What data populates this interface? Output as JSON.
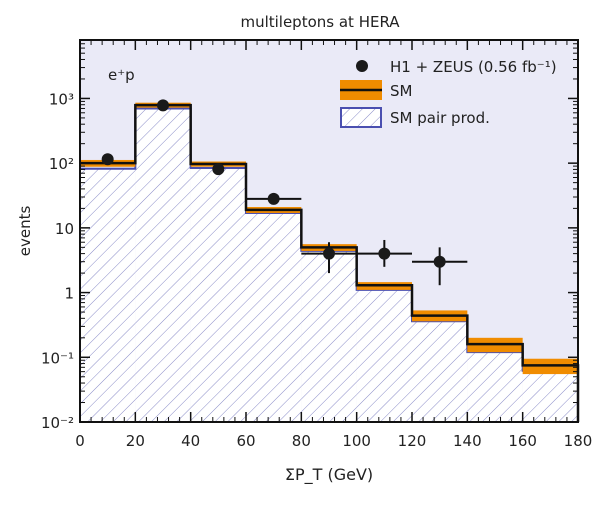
{
  "chart_data": {
    "type": "bar",
    "title": "multileptons at HERA",
    "annotation": "e⁺p",
    "xlabel": "ΣP_T (GeV)",
    "ylabel": "events",
    "xlim": [
      0,
      180
    ],
    "ylim": [
      0.01,
      8000
    ],
    "yscale": "log",
    "xticks": [
      0,
      20,
      40,
      60,
      80,
      100,
      120,
      140,
      160,
      180
    ],
    "yticks": [
      {
        "v": 0.01,
        "label": "10⁻²"
      },
      {
        "v": 0.1,
        "label": "10⁻¹"
      },
      {
        "v": 1,
        "label": "1"
      },
      {
        "v": 10,
        "label": "10"
      },
      {
        "v": 100,
        "label": "10²"
      },
      {
        "v": 1000,
        "label": "10³"
      }
    ],
    "bin_edges": [
      0,
      20,
      40,
      60,
      80,
      100,
      120,
      140,
      160,
      180
    ],
    "series": [
      {
        "name": "SM",
        "values": [
          100,
          790,
          97,
          19,
          5,
          1.3,
          0.44,
          0.16,
          0.075
        ],
        "unc_low": [
          88,
          720,
          88,
          17,
          4.4,
          1.1,
          0.36,
          0.12,
          0.055
        ],
        "unc_high": [
          112,
          860,
          106,
          21,
          5.6,
          1.45,
          0.53,
          0.2,
          0.095
        ],
        "color": "#f08c00"
      },
      {
        "name": "SM pair prod.",
        "values": [
          82,
          700,
          84,
          17,
          4.4,
          1.1,
          0.36,
          0.12,
          0.062
        ],
        "color": "#4a4fb0"
      }
    ],
    "data_points": {
      "name": "H1 + ZEUS (0.56 fb⁻¹)",
      "x": [
        10,
        30,
        50,
        70,
        90,
        110,
        130
      ],
      "y": [
        115,
        780,
        81,
        28,
        4,
        4,
        3
      ],
      "xerr": [
        0,
        0,
        0,
        10,
        10,
        10,
        10
      ],
      "ylow": [
        115,
        780,
        81,
        28,
        2,
        2.5,
        1.3
      ],
      "yhigh": [
        115,
        780,
        81,
        28,
        6,
        6.5,
        5
      ]
    },
    "legend_position": "top-right"
  }
}
